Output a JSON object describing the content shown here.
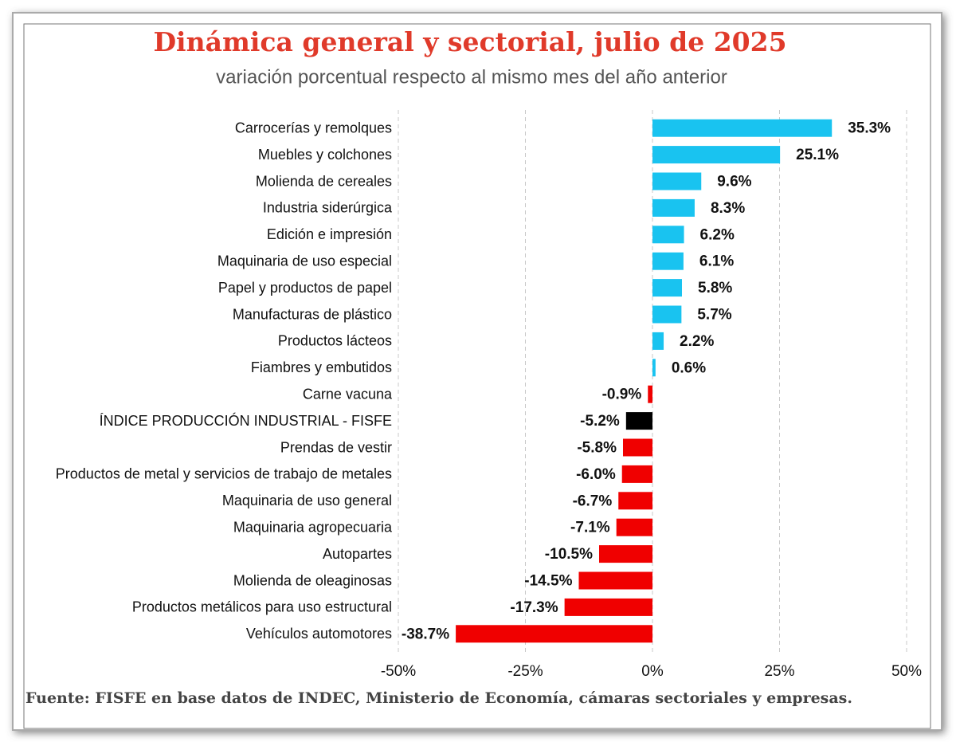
{
  "chart_data": {
    "type": "hbar",
    "title": "Dinámica general y sectorial, julio de 2025",
    "subtitle": "variación porcentual respecto al mismo mes del  año anterior",
    "source": "Fuente: FISFE en base datos de INDEC, Ministerio de Economía, cámaras sectoriales y empresas.",
    "categories": [
      "Carrocerías y remolques",
      "Muebles y colchones",
      "Molienda de cereales",
      "Industria siderúrgica",
      "Edición e impresión",
      "Maquinaria de uso especial",
      "Papel y productos de papel",
      "Manufacturas de plástico",
      "Productos lácteos",
      "Fiambres y embutidos",
      "Carne vacuna",
      "ÍNDICE PRODUCCIÓN INDUSTRIAL - FISFE",
      "Prendas de vestir",
      "Productos de metal y servicios de trabajo de metales",
      "Maquinaria de uso general",
      "Maquinaria agropecuaria",
      "Autopartes",
      "Molienda de oleaginosas",
      "Productos metálicos para uso estructural",
      "Vehículos automotores"
    ],
    "values": [
      35.3,
      25.1,
      9.6,
      8.3,
      6.2,
      6.1,
      5.8,
      5.7,
      2.2,
      0.6,
      -0.9,
      -5.2,
      -5.8,
      -6.0,
      -6.7,
      -7.1,
      -10.5,
      -14.5,
      -17.3,
      -38.7
    ],
    "value_labels": [
      "35.3%",
      "25.1%",
      "9.6%",
      "8.3%",
      "6.2%",
      "6.1%",
      "5.8%",
      "5.7%",
      "2.2%",
      "0.6%",
      "-0.9%",
      "-5.2%",
      "-5.8%",
      "-6.0%",
      "-6.7%",
      "-7.1%",
      "-10.5%",
      "-14.5%",
      "-17.3%",
      "-38.7%"
    ],
    "colors": [
      "#19c3f0",
      "#19c3f0",
      "#19c3f0",
      "#19c3f0",
      "#19c3f0",
      "#19c3f0",
      "#19c3f0",
      "#19c3f0",
      "#19c3f0",
      "#19c3f0",
      "#f00000",
      "#000000",
      "#f00000",
      "#f00000",
      "#f00000",
      "#f00000",
      "#f00000",
      "#f00000",
      "#f00000",
      "#f00000"
    ],
    "xlim": [
      -50,
      50
    ],
    "xticks": [
      {
        "value": -50,
        "label": "-50%"
      },
      {
        "value": -25,
        "label": "-25%"
      },
      {
        "value": 0,
        "label": "0%"
      },
      {
        "value": 25,
        "label": "25%"
      },
      {
        "value": 50,
        "label": "50%"
      }
    ],
    "grid": true
  }
}
